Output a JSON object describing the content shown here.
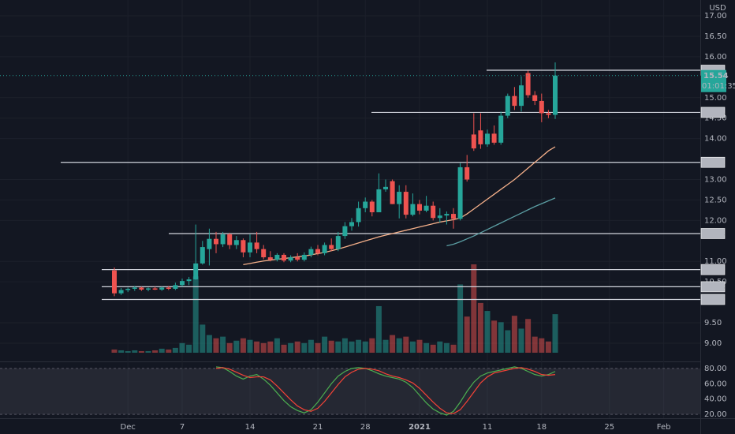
{
  "chart_data": {
    "type": "candlestick",
    "currency": "USD",
    "up_color": "#26a69a",
    "down_color": "#ef5350",
    "categories": [
      null,
      null,
      "Dec",
      null,
      null,
      null,
      null,
      null,
      null,
      null,
      "7",
      null,
      null,
      null,
      null,
      null,
      null,
      null,
      null,
      null,
      "14",
      null,
      null,
      null,
      null,
      null,
      null,
      null,
      null,
      null,
      "21",
      null,
      null,
      null,
      null,
      null,
      null,
      "28",
      null,
      null,
      null,
      null,
      null,
      null,
      null,
      "2021",
      null,
      null,
      null,
      null,
      null,
      null,
      null,
      null,
      null,
      "11",
      null,
      null,
      null,
      null,
      null,
      null,
      null,
      "18",
      null,
      null,
      null,
      null,
      null,
      null,
      null,
      null,
      null,
      "25",
      null,
      null,
      null,
      null,
      null,
      null,
      null,
      "Feb"
    ],
    "open": [
      10.78,
      10.22,
      10.3,
      10.33,
      10.36,
      10.31,
      10.34,
      10.31,
      10.36,
      10.33,
      10.42,
      10.52,
      10.56,
      10.95,
      11.3,
      11.55,
      11.42,
      11.66,
      11.4,
      11.52,
      11.22,
      11.46,
      11.3,
      11.1,
      11.04,
      11.16,
      11.02,
      11.1,
      11.04,
      11.16,
      11.3,
      11.2,
      11.4,
      11.3,
      11.62,
      11.86,
      11.96,
      12.3,
      12.46,
      12.2,
      12.76,
      12.96,
      12.4,
      12.7,
      12.14,
      12.4,
      12.24,
      12.36,
      12.06,
      12.12,
      12.16,
      12.04,
      13.3,
      14.1,
      14.2,
      13.86,
      14.12,
      13.9,
      14.56,
      15.04,
      14.8,
      15.6,
      15.06,
      14.92,
      14.62,
      14.58,
      null,
      null,
      null,
      null,
      null,
      null,
      null,
      null,
      null,
      null,
      null,
      null,
      null,
      null,
      null,
      null
    ],
    "high": [
      10.85,
      10.35,
      10.36,
      10.4,
      10.38,
      10.36,
      10.38,
      10.38,
      10.4,
      10.48,
      10.58,
      10.62,
      11.9,
      11.5,
      11.8,
      11.72,
      11.72,
      11.7,
      11.62,
      11.56,
      11.66,
      11.72,
      11.4,
      11.25,
      11.2,
      11.2,
      11.15,
      11.2,
      11.22,
      11.36,
      11.4,
      11.46,
      11.56,
      11.72,
      11.96,
      12.06,
      12.46,
      12.56,
      12.5,
      13.15,
      13.0,
      13.0,
      12.86,
      12.86,
      12.66,
      12.5,
      12.6,
      12.46,
      12.3,
      12.22,
      12.3,
      13.4,
      13.6,
      14.62,
      14.62,
      14.22,
      14.32,
      14.66,
      15.1,
      15.26,
      15.52,
      15.66,
      15.16,
      15.1,
      14.7,
      15.86,
      null,
      null,
      null,
      null,
      null,
      null,
      null,
      null,
      null,
      null,
      null,
      null,
      null,
      null,
      null,
      null
    ],
    "low": [
      10.15,
      10.18,
      10.25,
      10.28,
      10.28,
      10.27,
      10.3,
      10.28,
      10.3,
      10.3,
      10.38,
      10.42,
      10.55,
      10.92,
      10.9,
      11.2,
      11.35,
      11.3,
      11.3,
      11.1,
      11.1,
      11.2,
      11.05,
      11.0,
      11.0,
      10.98,
      10.98,
      11.0,
      11.0,
      11.1,
      11.15,
      11.15,
      11.25,
      11.25,
      11.55,
      11.75,
      11.85,
      12.2,
      12.1,
      12.2,
      12.7,
      12.4,
      12.05,
      12.05,
      12.1,
      12.15,
      12.2,
      12.0,
      11.95,
      11.9,
      11.8,
      12.0,
      12.95,
      13.7,
      13.75,
      13.8,
      13.85,
      13.85,
      14.5,
      14.7,
      14.66,
      15.0,
      14.82,
      14.4,
      14.5,
      14.48,
      null,
      null,
      null,
      null,
      null,
      null,
      null,
      null,
      null,
      null,
      null,
      null,
      null,
      null,
      null,
      null
    ],
    "close": [
      10.22,
      10.3,
      10.33,
      10.36,
      10.31,
      10.34,
      10.31,
      10.36,
      10.33,
      10.42,
      10.52,
      10.56,
      10.95,
      11.35,
      11.55,
      11.42,
      11.66,
      11.4,
      11.52,
      11.22,
      11.46,
      11.3,
      11.1,
      11.04,
      11.16,
      11.02,
      11.1,
      11.04,
      11.16,
      11.3,
      11.2,
      11.4,
      11.3,
      11.62,
      11.86,
      11.96,
      12.3,
      12.46,
      12.2,
      12.76,
      12.82,
      12.4,
      12.7,
      12.14,
      12.4,
      12.24,
      12.36,
      12.06,
      12.12,
      12.16,
      12.04,
      13.3,
      13.0,
      13.76,
      13.86,
      14.12,
      13.9,
      14.56,
      15.04,
      14.8,
      15.3,
      15.06,
      14.92,
      14.62,
      14.58,
      15.54,
      null,
      null,
      null,
      null,
      null,
      null,
      null,
      null,
      null,
      null,
      null,
      null,
      null,
      null,
      null,
      null
    ],
    "volume": [
      4,
      3,
      2,
      3,
      2,
      2,
      3,
      5,
      4,
      6,
      12,
      10,
      95,
      35,
      22,
      18,
      20,
      12,
      15,
      18,
      16,
      14,
      12,
      14,
      18,
      10,
      12,
      14,
      12,
      16,
      12,
      20,
      15,
      14,
      18,
      14,
      16,
      14,
      18,
      58,
      16,
      22,
      18,
      20,
      14,
      16,
      12,
      10,
      14,
      12,
      10,
      85,
      45,
      110,
      62,
      52,
      40,
      38,
      28,
      46,
      30,
      42,
      20,
      18,
      14,
      48,
      null,
      null,
      null,
      null,
      null,
      null,
      null,
      null,
      null,
      null,
      null,
      null,
      null,
      null,
      null,
      null
    ],
    "ylim": [
      8.614,
      17.386
    ],
    "yticks": [
      {
        "value": 17,
        "label": "17.00"
      },
      {
        "value": 16.5,
        "label": "16.50"
      },
      {
        "value": 16,
        "label": "16.00"
      },
      {
        "value": 15,
        "label": "15.00"
      },
      {
        "value": 14.5,
        "label": "14.50"
      },
      {
        "value": 14,
        "label": "14.00"
      },
      {
        "value": 13,
        "label": "13.00"
      },
      {
        "value": 12.5,
        "label": "12.50"
      },
      {
        "value": 12,
        "label": "12.00"
      },
      {
        "value": 11,
        "label": "11.00"
      },
      {
        "value": 10.5,
        "label": "10.50"
      },
      {
        "value": 9.5,
        "label": "9.50"
      },
      {
        "value": 9,
        "label": "9.00"
      }
    ],
    "levels": [
      15.67,
      14.64,
      13.42,
      11.68,
      10.8,
      10.38,
      10.07
    ],
    "last_price": 15.54,
    "countdown": "01:01:35",
    "moving_averages": [
      {
        "color": "#f5b08a",
        "values": [
          null,
          null,
          null,
          null,
          null,
          null,
          null,
          null,
          null,
          null,
          null,
          null,
          null,
          null,
          null,
          null,
          null,
          null,
          null,
          10.92,
          10.95,
          10.98,
          11.01,
          11.03,
          11.05,
          11.07,
          11.09,
          11.11,
          11.13,
          11.16,
          11.19,
          11.22,
          11.26,
          11.3,
          11.35,
          11.4,
          11.45,
          11.5,
          11.55,
          11.6,
          11.64,
          11.68,
          11.72,
          11.76,
          11.8,
          11.84,
          11.88,
          11.92,
          11.96,
          11.99,
          12.02,
          12.06,
          12.16,
          12.28,
          12.4,
          12.52,
          12.64,
          12.76,
          12.88,
          13.0,
          13.14,
          13.28,
          13.42,
          13.56,
          13.7,
          13.8,
          null,
          null,
          null,
          null,
          null,
          null,
          null,
          null,
          null,
          null,
          null,
          null,
          null,
          null,
          null,
          null
        ]
      },
      {
        "color": "#5b9ea3",
        "values": [
          null,
          null,
          null,
          null,
          null,
          null,
          null,
          null,
          null,
          null,
          null,
          null,
          null,
          null,
          null,
          null,
          null,
          null,
          null,
          null,
          null,
          null,
          null,
          null,
          null,
          null,
          null,
          null,
          null,
          null,
          null,
          null,
          null,
          null,
          null,
          null,
          null,
          null,
          null,
          null,
          null,
          null,
          null,
          null,
          null,
          null,
          null,
          null,
          null,
          11.38,
          11.42,
          11.48,
          11.55,
          11.62,
          11.7,
          11.78,
          11.86,
          11.94,
          12.02,
          12.1,
          12.18,
          12.26,
          12.34,
          12.41,
          12.48,
          12.55,
          null,
          null,
          null,
          null,
          null,
          null,
          null,
          null,
          null,
          null,
          null,
          null,
          null,
          null,
          null,
          null
        ]
      }
    ],
    "stochastic": {
      "ylim": [
        15,
        85
      ],
      "band": [
        20,
        80
      ],
      "yticks": [
        {
          "value": 80,
          "label": "80.00"
        },
        {
          "value": 60,
          "label": "60.00"
        },
        {
          "value": 40,
          "label": "40.00"
        },
        {
          "value": 20,
          "label": "20.00"
        }
      ],
      "series": [
        {
          "color": "#4caf50",
          "values": [
            null,
            null,
            null,
            null,
            null,
            null,
            null,
            null,
            null,
            null,
            null,
            null,
            null,
            null,
            null,
            82,
            81,
            76,
            70,
            66,
            70,
            72,
            66,
            58,
            48,
            38,
            30,
            25,
            22,
            26,
            36,
            48,
            60,
            70,
            76,
            80,
            81,
            80,
            77,
            73,
            70,
            68,
            66,
            62,
            55,
            45,
            35,
            27,
            22,
            19,
            24,
            36,
            50,
            62,
            70,
            74,
            76,
            78,
            80,
            82,
            80,
            76,
            72,
            70,
            72,
            76,
            null,
            null,
            null,
            null,
            null,
            null,
            null,
            null,
            null,
            null,
            null,
            null,
            null,
            null,
            null,
            null
          ]
        },
        {
          "color": "#f44336",
          "values": [
            null,
            null,
            null,
            null,
            null,
            null,
            null,
            null,
            null,
            null,
            null,
            null,
            null,
            null,
            null,
            80,
            81,
            79,
            75,
            71,
            68,
            69,
            69,
            65,
            57,
            48,
            39,
            31,
            26,
            24,
            28,
            37,
            48,
            59,
            69,
            75,
            79,
            80,
            79,
            77,
            73,
            70,
            68,
            65,
            61,
            54,
            45,
            36,
            28,
            22,
            21,
            26,
            37,
            49,
            61,
            69,
            74,
            76,
            78,
            80,
            81,
            79,
            76,
            72,
            71,
            72,
            null,
            null,
            null,
            null,
            null,
            null,
            null,
            null,
            null,
            null,
            null,
            null,
            null,
            null,
            null,
            null
          ]
        }
      ]
    }
  }
}
